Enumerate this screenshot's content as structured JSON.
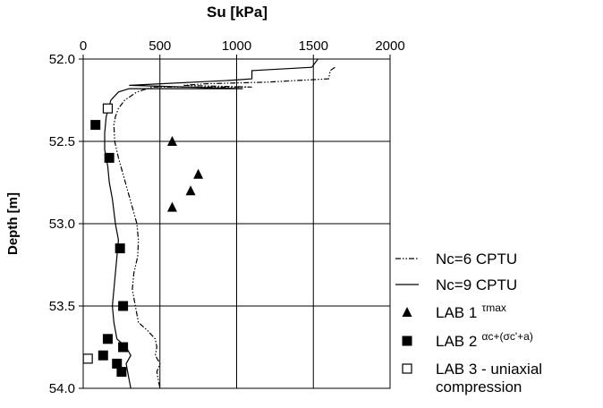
{
  "chart_data": {
    "type": "scatter",
    "title": "",
    "xlabel": "Su [kPa]",
    "ylabel": "Depth [m]",
    "x_axis_position": "top",
    "xlim": [
      0,
      2000
    ],
    "ylim": [
      52.0,
      54.0
    ],
    "y_inverted": true,
    "x_ticks": [
      "0",
      "500",
      "1000",
      "1500",
      "2000"
    ],
    "y_ticks": [
      "52.0",
      "52.5",
      "53.0",
      "53.5",
      "54.0"
    ],
    "grid": true,
    "legend_position": "right",
    "series": [
      {
        "name": "Nc=6  CPTU",
        "kind": "line",
        "style": "dash-dot-dot",
        "points": [
          [
            1640,
            52.05
          ],
          [
            1610,
            52.07
          ],
          [
            1600,
            52.12
          ],
          [
            1400,
            52.13
          ],
          [
            1200,
            52.14
          ],
          [
            800,
            52.15
          ],
          [
            650,
            52.16
          ],
          [
            1100,
            52.17
          ],
          [
            450,
            52.17
          ],
          [
            350,
            52.2
          ],
          [
            270,
            52.25
          ],
          [
            230,
            52.3
          ],
          [
            210,
            52.35
          ],
          [
            200,
            52.4
          ],
          [
            205,
            52.5
          ],
          [
            230,
            52.6
          ],
          [
            260,
            52.7
          ],
          [
            290,
            52.8
          ],
          [
            320,
            52.9
          ],
          [
            350,
            53.0
          ],
          [
            360,
            53.1
          ],
          [
            355,
            53.2
          ],
          [
            330,
            53.3
          ],
          [
            320,
            53.4
          ],
          [
            340,
            53.5
          ],
          [
            360,
            53.6
          ],
          [
            420,
            53.65
          ],
          [
            470,
            53.7
          ],
          [
            480,
            53.75
          ],
          [
            470,
            53.8
          ],
          [
            500,
            53.85
          ],
          [
            480,
            53.9
          ],
          [
            490,
            53.95
          ],
          [
            500,
            54.0
          ]
        ]
      },
      {
        "name": "Nc=9  CPTU",
        "kind": "line",
        "style": "solid",
        "points": [
          [
            1530,
            52.0
          ],
          [
            1490,
            52.05
          ],
          [
            1100,
            52.07
          ],
          [
            1100,
            52.11
          ],
          [
            1100,
            52.12
          ],
          [
            950,
            52.13
          ],
          [
            300,
            52.16
          ],
          [
            1040,
            52.18
          ],
          [
            300,
            52.18
          ],
          [
            230,
            52.2
          ],
          [
            180,
            52.25
          ],
          [
            150,
            52.35
          ],
          [
            140,
            52.45
          ],
          [
            140,
            52.55
          ],
          [
            160,
            52.65
          ],
          [
            170,
            52.75
          ],
          [
            190,
            52.85
          ],
          [
            210,
            53.0
          ],
          [
            230,
            53.1
          ],
          [
            220,
            53.2
          ],
          [
            210,
            53.3
          ],
          [
            200,
            53.4
          ],
          [
            190,
            53.5
          ],
          [
            200,
            53.6
          ],
          [
            220,
            53.7
          ],
          [
            280,
            53.75
          ],
          [
            310,
            53.8
          ],
          [
            280,
            53.85
          ],
          [
            290,
            53.9
          ],
          [
            300,
            53.95
          ],
          [
            310,
            54.0
          ]
        ]
      },
      {
        "name": "LAB 1",
        "name_suffix": "τmax",
        "kind": "marker",
        "marker": "triangle",
        "points": [
          [
            580,
            52.5
          ],
          [
            750,
            52.7
          ],
          [
            700,
            52.8
          ],
          [
            580,
            52.9
          ]
        ]
      },
      {
        "name": "LAB 2",
        "name_suffix": "αc+(σc'+a)",
        "kind": "marker",
        "marker": "square-filled",
        "points": [
          [
            80,
            52.4
          ],
          [
            170,
            52.6
          ],
          [
            240,
            53.15
          ],
          [
            260,
            53.5
          ],
          [
            160,
            53.7
          ],
          [
            260,
            53.75
          ],
          [
            130,
            53.8
          ],
          [
            220,
            53.85
          ],
          [
            250,
            53.9
          ]
        ]
      },
      {
        "name": "LAB 3 - uniaxial compression",
        "kind": "marker",
        "marker": "square-open",
        "points": [
          [
            160,
            52.3
          ],
          [
            30,
            53.82
          ]
        ]
      }
    ]
  },
  "legend": {
    "items": [
      {
        "label": "Nc=6  CPTU"
      },
      {
        "label": "Nc=9  CPTU"
      },
      {
        "label": "LAB 1",
        "suffix": "τmax"
      },
      {
        "label": "LAB 2",
        "suffix": "αc+(σc'+a)"
      },
      {
        "label": "LAB 3 - uniaxial",
        "label2": "compression"
      }
    ]
  }
}
